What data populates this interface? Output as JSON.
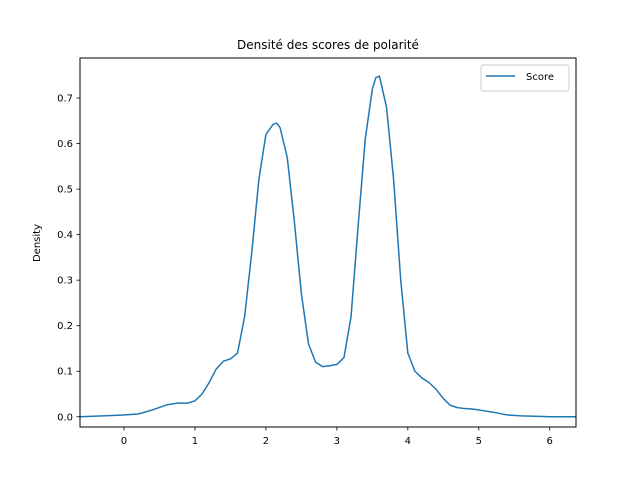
{
  "chart_data": {
    "type": "line",
    "title": "Densité des scores de polarité",
    "xlabel": "",
    "ylabel": "Density",
    "xlim": [
      -0.62,
      6.37
    ],
    "ylim": [
      -0.0225,
      0.788
    ],
    "xticks": [
      0,
      1,
      2,
      3,
      4,
      5,
      6
    ],
    "yticks": [
      0.0,
      0.1,
      0.2,
      0.3,
      0.4,
      0.5,
      0.6,
      0.7
    ],
    "ytick_labels": [
      "0.0",
      "0.1",
      "0.2",
      "0.3",
      "0.4",
      "0.5",
      "0.6",
      "0.7"
    ],
    "grid": false,
    "legend": {
      "position": "top-right",
      "entries": [
        "Score"
      ]
    },
    "series": [
      {
        "name": "Score",
        "color": "#1f77b4",
        "x": [
          -0.62,
          -0.3,
          0.0,
          0.2,
          0.4,
          0.6,
          0.75,
          0.9,
          1.0,
          1.1,
          1.2,
          1.3,
          1.4,
          1.5,
          1.6,
          1.7,
          1.8,
          1.9,
          2.0,
          2.1,
          2.15,
          2.2,
          2.3,
          2.4,
          2.5,
          2.6,
          2.7,
          2.8,
          2.9,
          3.0,
          3.1,
          3.2,
          3.3,
          3.4,
          3.5,
          3.55,
          3.6,
          3.7,
          3.8,
          3.9,
          4.0,
          4.1,
          4.2,
          4.3,
          4.4,
          4.5,
          4.6,
          4.7,
          4.8,
          4.9,
          5.0,
          5.2,
          5.4,
          5.6,
          5.8,
          6.0,
          6.37
        ],
        "y": [
          0.0,
          0.002,
          0.004,
          0.006,
          0.015,
          0.026,
          0.03,
          0.03,
          0.035,
          0.05,
          0.075,
          0.105,
          0.122,
          0.127,
          0.14,
          0.22,
          0.36,
          0.52,
          0.62,
          0.642,
          0.645,
          0.635,
          0.57,
          0.43,
          0.27,
          0.16,
          0.12,
          0.11,
          0.112,
          0.115,
          0.13,
          0.22,
          0.42,
          0.61,
          0.72,
          0.745,
          0.748,
          0.68,
          0.52,
          0.3,
          0.14,
          0.1,
          0.085,
          0.075,
          0.06,
          0.04,
          0.025,
          0.02,
          0.018,
          0.017,
          0.015,
          0.01,
          0.004,
          0.002,
          0.001,
          0.0,
          0.0
        ]
      }
    ]
  }
}
